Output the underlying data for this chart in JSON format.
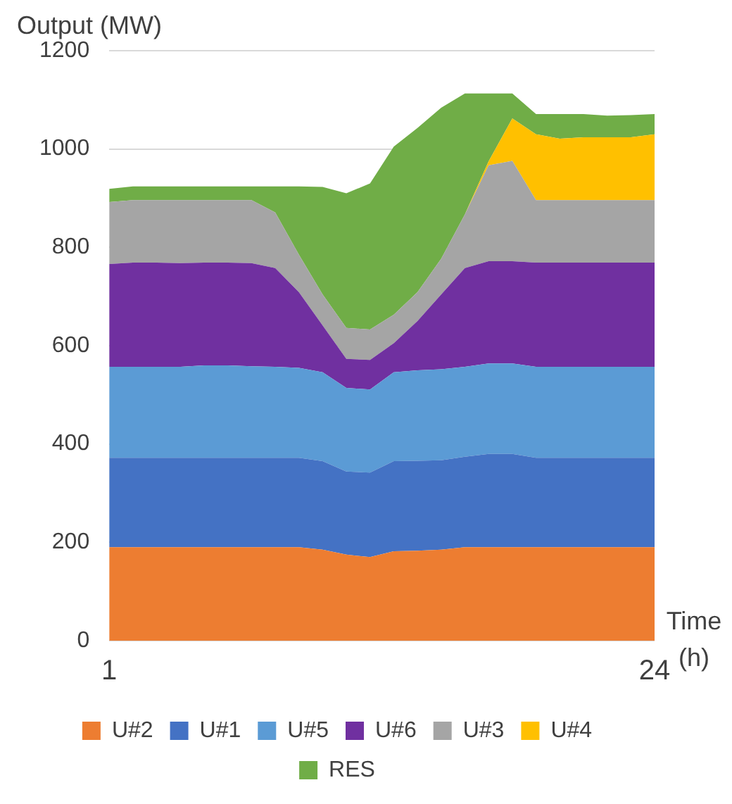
{
  "chart_data": {
    "type": "area",
    "stacked": true,
    "ylabel": "Output (MW)",
    "xlabel": "Time (h)",
    "categories": [
      "1",
      null,
      null,
      null,
      null,
      null,
      null,
      null,
      null,
      null,
      null,
      null,
      null,
      null,
      null,
      null,
      null,
      null,
      null,
      null,
      null,
      null,
      null,
      "24"
    ],
    "ylim": [
      0,
      1200
    ],
    "yticks": [
      0,
      200,
      400,
      600,
      800,
      1000,
      1200
    ],
    "grid": "y",
    "legend": "bottom",
    "marker": "none",
    "series": [
      {
        "name": "U#2",
        "color": "#ed7d31",
        "values": [
          190,
          190,
          190,
          190,
          190,
          190,
          190,
          190,
          190,
          185,
          175,
          170,
          182,
          183,
          185,
          190,
          190,
          190,
          190,
          190,
          190,
          190,
          190,
          190
        ]
      },
      {
        "name": "U#1",
        "color": "#4472c4",
        "values": [
          182,
          182,
          182,
          182,
          182,
          182,
          182,
          182,
          182,
          180,
          169,
          172,
          183,
          183,
          182,
          184,
          190,
          190,
          182,
          182,
          182,
          182,
          182,
          182
        ]
      },
      {
        "name": "U#5",
        "color": "#5b9bd5",
        "values": [
          185,
          185,
          185,
          185,
          188,
          188,
          186,
          185,
          183,
          181,
          170,
          169,
          181,
          184,
          185,
          183,
          184,
          184,
          185,
          185,
          185,
          185,
          185,
          185
        ]
      },
      {
        "name": "U#6",
        "color": "#7030a0",
        "values": [
          209,
          212,
          212,
          211,
          209,
          209,
          210,
          201,
          154,
          95,
          59,
          60,
          59,
          100,
          152,
          201,
          208,
          208,
          212,
          212,
          212,
          212,
          212,
          212
        ]
      },
      {
        "name": "U#3",
        "color": "#a5a5a5",
        "values": [
          126,
          127,
          127,
          128,
          127,
          127,
          128,
          113,
          76,
          63,
          63,
          62,
          58,
          59,
          73,
          109,
          195,
          204,
          127,
          127,
          127,
          127,
          127,
          127
        ]
      },
      {
        "name": "U#4",
        "color": "#ffc000",
        "values": [
          0,
          0,
          0,
          0,
          0,
          0,
          0,
          0,
          0,
          0,
          0,
          0,
          0,
          0,
          0,
          0,
          8,
          86,
          134,
          125,
          128,
          128,
          128,
          134
        ]
      },
      {
        "name": "RES",
        "color": "#70ad47",
        "values": [
          27,
          28,
          28,
          28,
          28,
          28,
          28,
          53,
          139,
          219,
          274,
          297,
          342,
          334,
          307,
          246,
          138,
          51,
          41,
          50,
          47,
          44,
          45,
          41
        ]
      }
    ]
  }
}
